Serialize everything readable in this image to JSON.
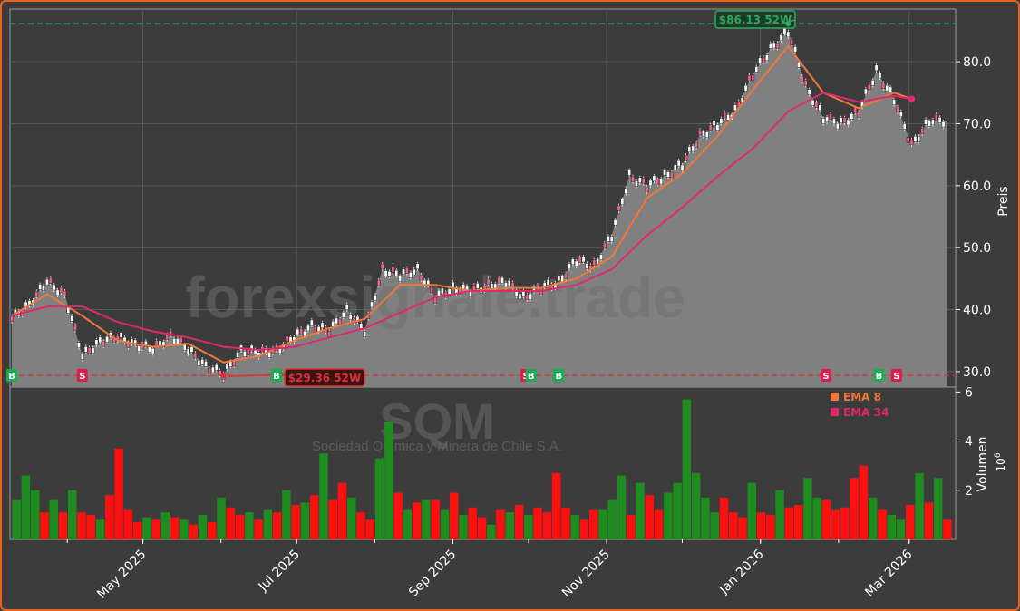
{
  "colors": {
    "background": "#3c3c3c",
    "frame": "#e8641e",
    "area": "#808080",
    "ema_fast": "#f07838",
    "ema_slow": "#e0286e",
    "up": "#1e8c1e",
    "down": "#ff1010",
    "high_line": "#2ea85a",
    "low_line": "#e03030",
    "buy": "#13b24e",
    "sell": "#e01c4a"
  },
  "chart_data": [
    {
      "type": "line",
      "panel": "price",
      "ylabel": "Preis",
      "ylim": [
        27.5,
        88.5
      ],
      "yticks": [
        30,
        40,
        50,
        60,
        70,
        80
      ],
      "ytick_labels": [
        "30.0",
        "40.0",
        "50.0",
        "60.0",
        "70.0",
        "80.0"
      ],
      "x_axis": {
        "start": "2025-03-10",
        "end": "2026-03-18",
        "ticks": [
          {
            "date": "2025-05-01",
            "label": "May 2025"
          },
          {
            "date": "2025-07-01",
            "label": "Jul 2025"
          },
          {
            "date": "2025-09-01",
            "label": "Sep 2025"
          },
          {
            "date": "2025-11-01",
            "label": "Nov 2025"
          },
          {
            "date": "2026-01-01",
            "label": "Jan 2026"
          },
          {
            "date": "2026-03-01",
            "label": "Mar 2026"
          }
        ]
      },
      "grid": true,
      "series": [
        {
          "name": "Close",
          "points": [
            [
              "2025-03-10",
              38.5
            ],
            [
              "2025-03-17",
              41.0
            ],
            [
              "2025-03-24",
              44.5
            ],
            [
              "2025-03-31",
              42.5
            ],
            [
              "2025-04-07",
              32.5
            ],
            [
              "2025-04-14",
              35.0
            ],
            [
              "2025-04-21",
              35.5
            ],
            [
              "2025-04-28",
              34.5
            ],
            [
              "2025-05-05",
              33.5
            ],
            [
              "2025-05-12",
              36.0
            ],
            [
              "2025-05-19",
              33.5
            ],
            [
              "2025-05-26",
              31.0
            ],
            [
              "2025-06-02",
              29.5
            ],
            [
              "2025-06-09",
              33.5
            ],
            [
              "2025-06-16",
              33.0
            ],
            [
              "2025-06-23",
              33.5
            ],
            [
              "2025-06-30",
              35.5
            ],
            [
              "2025-07-07",
              37.5
            ],
            [
              "2025-07-14",
              36.5
            ],
            [
              "2025-07-21",
              40.0
            ],
            [
              "2025-07-28",
              36.5
            ],
            [
              "2025-08-04",
              46.5
            ],
            [
              "2025-08-11",
              45.5
            ],
            [
              "2025-08-18",
              46.5
            ],
            [
              "2025-08-25",
              42.0
            ],
            [
              "2025-09-01",
              43.5
            ],
            [
              "2025-09-08",
              43.0
            ],
            [
              "2025-09-15",
              44.0
            ],
            [
              "2025-09-22",
              44.5
            ],
            [
              "2025-09-29",
              42.0
            ],
            [
              "2025-10-06",
              43.5
            ],
            [
              "2025-10-13",
              44.5
            ],
            [
              "2025-10-20",
              48.0
            ],
            [
              "2025-10-27",
              47.0
            ],
            [
              "2025-11-03",
              52.0
            ],
            [
              "2025-11-10",
              61.5
            ],
            [
              "2025-11-17",
              60.0
            ],
            [
              "2025-11-24",
              61.5
            ],
            [
              "2025-12-01",
              63.5
            ],
            [
              "2025-12-08",
              68.0
            ],
            [
              "2025-12-15",
              70.0
            ],
            [
              "2025-12-22",
              72.0
            ],
            [
              "2025-12-29",
              78.0
            ],
            [
              "2026-01-05",
              82.0
            ],
            [
              "2026-01-12",
              85.0
            ],
            [
              "2026-01-19",
              76.0
            ],
            [
              "2026-01-26",
              71.0
            ],
            [
              "2026-02-02",
              70.0
            ],
            [
              "2026-02-09",
              72.0
            ],
            [
              "2026-02-16",
              78.5
            ],
            [
              "2026-02-23",
              74.0
            ],
            [
              "2026-03-02",
              66.5
            ],
            [
              "2026-03-09",
              70.5
            ],
            [
              "2026-03-16",
              70.5
            ]
          ]
        },
        {
          "name": "EMA 8",
          "points": [
            [
              "2025-03-10",
              39.0
            ],
            [
              "2025-03-24",
              42.5
            ],
            [
              "2025-04-07",
              39.0
            ],
            [
              "2025-04-21",
              35.0
            ],
            [
              "2025-05-05",
              34.0
            ],
            [
              "2025-05-19",
              34.5
            ],
            [
              "2025-06-02",
              31.5
            ],
            [
              "2025-06-16",
              32.5
            ],
            [
              "2025-06-30",
              35.0
            ],
            [
              "2025-07-14",
              37.0
            ],
            [
              "2025-07-28",
              38.5
            ],
            [
              "2025-08-11",
              44.0
            ],
            [
              "2025-08-25",
              44.0
            ],
            [
              "2025-09-08",
              43.0
            ],
            [
              "2025-09-22",
              43.5
            ],
            [
              "2025-10-06",
              43.5
            ],
            [
              "2025-10-20",
              45.0
            ],
            [
              "2025-11-03",
              48.5
            ],
            [
              "2025-11-17",
              58.0
            ],
            [
              "2025-12-01",
              62.0
            ],
            [
              "2025-12-15",
              68.0
            ],
            [
              "2025-12-29",
              75.5
            ],
            [
              "2026-01-12",
              82.5
            ],
            [
              "2026-01-26",
              75.0
            ],
            [
              "2026-02-09",
              72.5
            ],
            [
              "2026-02-23",
              75.0
            ],
            [
              "2026-03-02",
              74.0
            ]
          ]
        },
        {
          "name": "EMA 34",
          "points": [
            [
              "2025-03-10",
              39.0
            ],
            [
              "2025-03-24",
              40.5
            ],
            [
              "2025-04-07",
              40.5
            ],
            [
              "2025-04-21",
              38.0
            ],
            [
              "2025-05-05",
              36.5
            ],
            [
              "2025-05-19",
              35.5
            ],
            [
              "2025-06-02",
              34.0
            ],
            [
              "2025-06-16",
              33.5
            ],
            [
              "2025-06-30",
              34.0
            ],
            [
              "2025-07-14",
              35.5
            ],
            [
              "2025-07-28",
              37.0
            ],
            [
              "2025-08-11",
              39.5
            ],
            [
              "2025-08-25",
              42.0
            ],
            [
              "2025-09-08",
              43.0
            ],
            [
              "2025-09-22",
              43.0
            ],
            [
              "2025-10-06",
              43.0
            ],
            [
              "2025-10-20",
              44.0
            ],
            [
              "2025-11-03",
              46.5
            ],
            [
              "2025-11-17",
              52.0
            ],
            [
              "2025-12-01",
              56.5
            ],
            [
              "2025-12-15",
              61.5
            ],
            [
              "2025-12-29",
              66.0
            ],
            [
              "2026-01-12",
              72.0
            ],
            [
              "2026-01-26",
              75.0
            ],
            [
              "2026-02-09",
              73.5
            ],
            [
              "2026-02-23",
              74.5
            ],
            [
              "2026-03-02",
              74.0
            ]
          ]
        }
      ],
      "reference_lines": [
        {
          "name": "52W high",
          "value": 86.13,
          "label": "$86.13 52W",
          "at_date": "2026-01-12"
        },
        {
          "name": "52W low",
          "value": 29.36,
          "label": "$29.36 52W",
          "at_date": "2025-06-02"
        }
      ],
      "signals": [
        {
          "date": "2025-03-10",
          "label": "B"
        },
        {
          "date": "2025-04-07",
          "label": "S"
        },
        {
          "date": "2025-06-23",
          "label": "B"
        },
        {
          "date": "2025-09-30",
          "label": "S"
        },
        {
          "date": "2025-10-02",
          "label": "B"
        },
        {
          "date": "2025-10-13",
          "label": "B"
        },
        {
          "date": "2026-01-27",
          "label": "S"
        },
        {
          "date": "2026-02-17",
          "label": "B"
        },
        {
          "date": "2026-02-24",
          "label": "S"
        }
      ],
      "legend": {
        "placement": "top-right",
        "entries": [
          "EMA 8",
          "EMA 34"
        ]
      }
    },
    {
      "type": "bar",
      "panel": "volume",
      "ylabel": "Volumen",
      "yunit": "10",
      "yunit_exp": "6",
      "ylim": [
        0,
        6.2
      ],
      "yticks": [
        2,
        4,
        6
      ],
      "ytick_labels": [
        "2",
        "4",
        "6"
      ],
      "grid": false,
      "values": [
        1.6,
        2.6,
        2.0,
        1.1,
        1.6,
        1.1,
        2.0,
        1.1,
        1.0,
        0.8,
        1.8,
        3.7,
        1.2,
        0.7,
        0.9,
        0.8,
        1.1,
        0.9,
        0.8,
        0.6,
        1.0,
        0.7,
        1.7,
        1.3,
        1.0,
        1.1,
        0.8,
        1.2,
        1.1,
        2.0,
        1.4,
        1.5,
        1.8,
        3.5,
        1.6,
        2.3,
        1.7,
        1.1,
        0.8,
        3.3,
        4.8,
        1.9,
        1.2,
        1.5,
        1.6,
        1.6,
        1.2,
        1.9,
        1.0,
        1.3,
        0.9,
        0.6,
        1.2,
        1.1,
        1.4,
        1.0,
        1.3,
        1.1,
        2.7,
        1.3,
        1.0,
        0.8,
        1.2,
        1.2,
        1.6,
        2.6,
        1.0,
        2.3,
        1.8,
        1.2,
        1.9,
        2.3,
        5.7,
        2.7,
        1.7,
        1.1,
        1.7,
        1.1,
        0.9,
        2.3,
        1.1,
        1.0,
        2.0,
        1.3,
        1.4,
        2.5,
        1.7,
        1.6,
        1.2,
        1.3,
        2.5,
        3.0,
        1.7,
        1.2,
        1.0,
        0.8,
        1.4,
        2.7,
        1.5,
        2.5,
        0.8
      ],
      "colors_pattern": [
        "up",
        "up",
        "up",
        "down",
        "up",
        "down",
        "up",
        "down",
        "down",
        "up",
        "down",
        "down",
        "down",
        "down",
        "up",
        "down",
        "up",
        "down",
        "up",
        "down",
        "up",
        "down",
        "up",
        "down",
        "down",
        "up",
        "down",
        "up",
        "down",
        "up",
        "down",
        "up",
        "down",
        "up",
        "down",
        "down",
        "up",
        "down",
        "down",
        "up",
        "up",
        "down",
        "up",
        "down",
        "up",
        "down",
        "up",
        "down",
        "up",
        "down",
        "down",
        "up",
        "down",
        "up",
        "down",
        "up",
        "down",
        "down",
        "down",
        "down",
        "up",
        "down",
        "down",
        "up",
        "up",
        "up",
        "down",
        "up",
        "down",
        "down",
        "up",
        "up",
        "up",
        "up",
        "up",
        "up",
        "down",
        "down",
        "down",
        "up",
        "down",
        "down",
        "up",
        "down",
        "down",
        "up",
        "up",
        "down",
        "down",
        "down",
        "down",
        "down",
        "up",
        "down",
        "up",
        "up",
        "down",
        "up",
        "down",
        "up",
        "down"
      ]
    }
  ],
  "watermark": {
    "site": "forexsignale.trade",
    "ticker": "SQM",
    "company": "Sociedad Química y Minera de Chile S.A."
  }
}
